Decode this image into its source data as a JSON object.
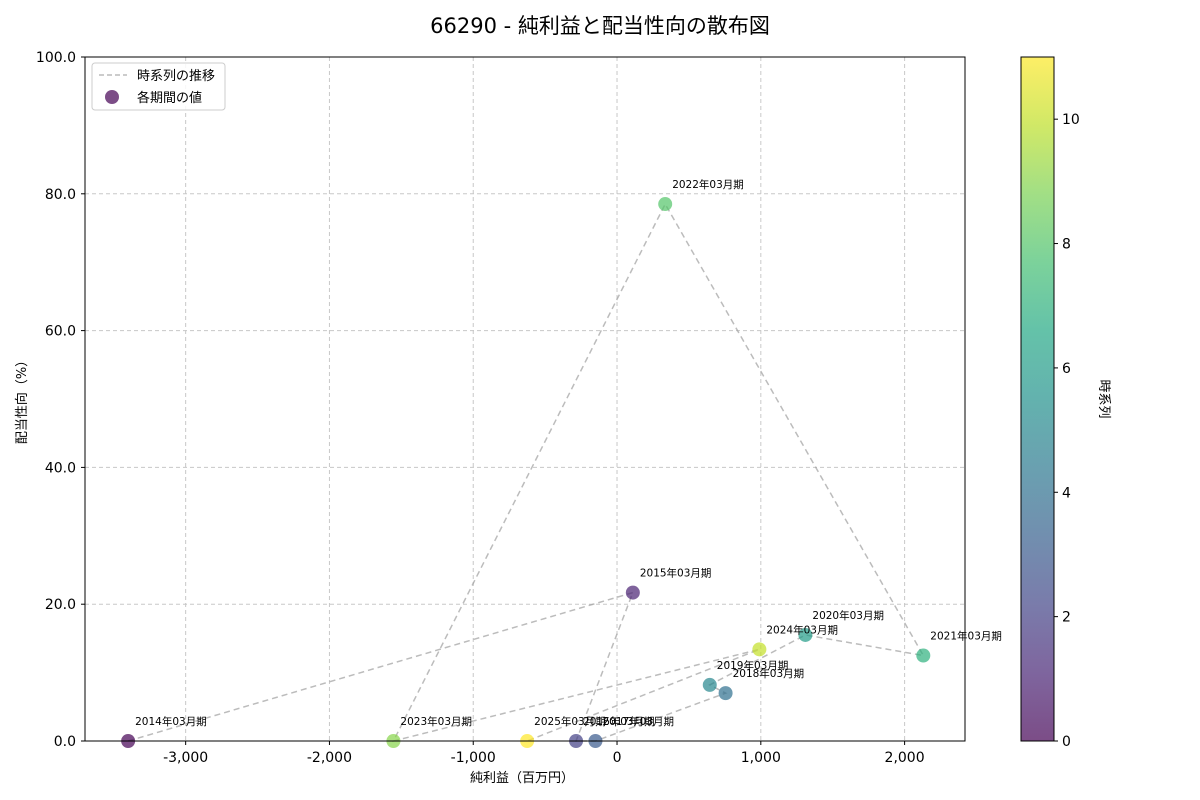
{
  "chart_data": {
    "type": "scatter",
    "title": "66290 - 純利益と配当性向の散布図",
    "xlabel": "純利益（百万円）",
    "ylabel": "配当性向（%）",
    "xlim": [
      -3700,
      2420
    ],
    "ylim": [
      0,
      100
    ],
    "grid": true,
    "x_ticks": [
      -3000,
      -2000,
      -1000,
      0,
      1000,
      2000
    ],
    "x_tick_labels": [
      "-3,000",
      "-2,000",
      "-1,000",
      "0",
      "1,000",
      "2,000"
    ],
    "y_ticks": [
      0,
      20,
      40,
      60,
      80,
      100
    ],
    "y_tick_labels": [
      "0.0",
      "20.0",
      "40.0",
      "60.0",
      "80.0",
      "100.0"
    ],
    "legend": {
      "position": "upper left",
      "entries": [
        {
          "label": "時系列の推移",
          "marker": "dashed-line"
        },
        {
          "label": "各期間の値",
          "marker": "circle"
        }
      ]
    },
    "colorbar": {
      "label": "時系列",
      "range": [
        0,
        11
      ],
      "ticks": [
        0,
        2,
        4,
        6,
        8,
        10
      ],
      "colormap": "viridis"
    },
    "points": [
      {
        "label": "2014年03月期",
        "t": 0,
        "x": -3400,
        "y": 0.0
      },
      {
        "label": "2015年03月期",
        "t": 1,
        "x": 110,
        "y": 21.7
      },
      {
        "label": "2016年03月期",
        "t": 2,
        "x": -285,
        "y": 0.0
      },
      {
        "label": "2017年03月期",
        "t": 3,
        "x": -150,
        "y": 0.0
      },
      {
        "label": "2018年03月期",
        "t": 4,
        "x": 755,
        "y": 7.0
      },
      {
        "label": "2019年03月期",
        "t": 5,
        "x": 645,
        "y": 8.2
      },
      {
        "label": "2020年03月期",
        "t": 6,
        "x": 1310,
        "y": 15.5
      },
      {
        "label": "2021年03月期",
        "t": 7,
        "x": 2130,
        "y": 12.5
      },
      {
        "label": "2022年03月期",
        "t": 8,
        "x": 335,
        "y": 78.5
      },
      {
        "label": "2023年03月期",
        "t": 9,
        "x": -1555,
        "y": 0.0
      },
      {
        "label": "2024年03月期",
        "t": 10,
        "x": 990,
        "y": 13.4
      },
      {
        "label": "2025年03月期",
        "t": 11,
        "x": -625,
        "y": 0.0
      }
    ]
  }
}
